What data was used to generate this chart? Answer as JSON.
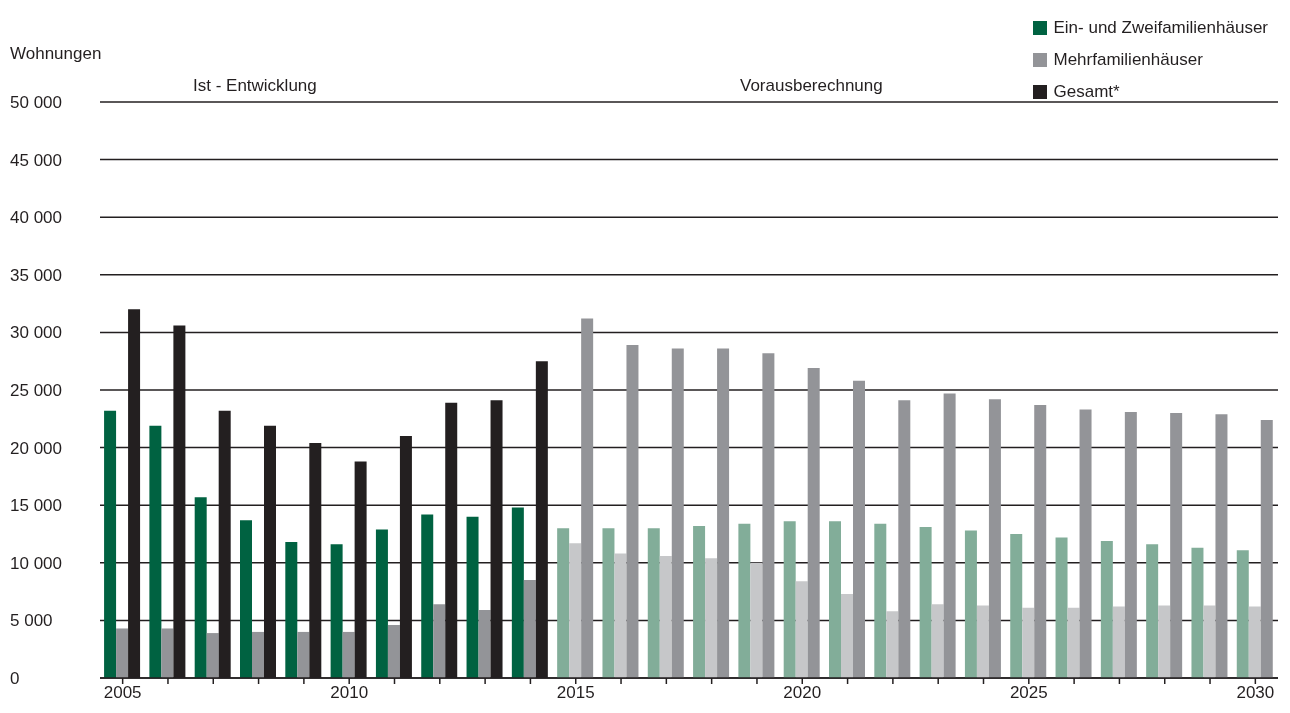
{
  "chart_data": {
    "type": "bar",
    "ylabel": "Wohnungen",
    "annotations": [
      "Ist - Entwicklung",
      "Vorausberechnung"
    ],
    "categories": [
      "2005",
      null,
      null,
      null,
      null,
      "2010",
      null,
      null,
      null,
      null,
      "2015",
      null,
      null,
      null,
      null,
      "2020",
      null,
      null,
      null,
      null,
      "2025",
      null,
      null,
      null,
      null,
      "2030"
    ],
    "series": [
      {
        "name": "Ein- und Zweifamilienhäuser",
        "color": "#006241",
        "colors": [
          "#006241",
          "#006241",
          "#006241",
          "#006241",
          "#006241",
          "#006241",
          "#006241",
          "#006241",
          "#006241",
          "#006241",
          "#82ad99",
          "#82ad99",
          "#82ad99",
          "#82ad99",
          "#82ad99",
          "#82ad99",
          "#82ad99",
          "#82ad99",
          "#82ad99",
          "#82ad99",
          "#82ad99",
          "#82ad99",
          "#82ad99",
          "#82ad99",
          "#82ad99",
          "#82ad99"
        ],
        "values": [
          23200,
          21900,
          15700,
          13700,
          11800,
          11600,
          12900,
          14200,
          14000,
          14800,
          13000,
          13000,
          13000,
          13200,
          13400,
          13600,
          13600,
          13400,
          13100,
          12800,
          12500,
          12200,
          11900,
          11600,
          11300,
          11100
        ]
      },
      {
        "name": "Mehrfamilienhäuser",
        "color": "#939498",
        "colors": [
          "#939498",
          "#939498",
          "#939498",
          "#939498",
          "#939498",
          "#939498",
          "#939498",
          "#939498",
          "#939498",
          "#939498",
          "#c6c7c9",
          "#c6c7c9",
          "#c6c7c9",
          "#c6c7c9",
          "#c6c7c9",
          "#c6c7c9",
          "#c6c7c9",
          "#c6c7c9",
          "#c6c7c9",
          "#c6c7c9",
          "#c6c7c9",
          "#c6c7c9",
          "#c6c7c9",
          "#c6c7c9",
          "#c6c7c9",
          "#c6c7c9"
        ],
        "values": [
          4300,
          4300,
          3900,
          4000,
          4000,
          4000,
          4600,
          6400,
          5900,
          8500,
          11700,
          10800,
          10600,
          10400,
          10000,
          8400,
          7300,
          5800,
          6400,
          6300,
          6100,
          6100,
          6200,
          6300,
          6300,
          6200
        ]
      },
      {
        "name": "Gesamt*",
        "color": "#231f20",
        "colors": [
          "#231f20",
          "#231f20",
          "#231f20",
          "#231f20",
          "#231f20",
          "#231f20",
          "#231f20",
          "#231f20",
          "#231f20",
          "#231f20",
          "#939498",
          "#939498",
          "#939498",
          "#939498",
          "#939498",
          "#939498",
          "#939498",
          "#939498",
          "#939498",
          "#939498",
          "#939498",
          "#939498",
          "#939498",
          "#939498",
          "#939498",
          "#939498"
        ],
        "values": [
          32000,
          30600,
          23200,
          21900,
          20400,
          18800,
          21000,
          23900,
          24100,
          27500,
          31200,
          28900,
          28600,
          28600,
          28200,
          26900,
          25800,
          24100,
          24700,
          24200,
          23700,
          23300,
          23100,
          23000,
          22900,
          22400
        ]
      }
    ],
    "ylim": [
      0,
      50000
    ],
    "yticks": [
      0,
      {
        "value": 5000,
        "label": "5 000"
      },
      {
        "value": 10000,
        "label": "10 000"
      },
      {
        "value": 15000,
        "label": "15 000"
      },
      {
        "value": 20000,
        "label": "20 000"
      },
      {
        "value": 25000,
        "label": "25 000"
      },
      {
        "value": 30000,
        "label": "30 000"
      },
      {
        "value": 35000,
        "label": "35 000"
      },
      {
        "value": 40000,
        "label": "40 000"
      },
      {
        "value": 45000,
        "label": "45 000"
      },
      {
        "value": 50000,
        "label": "50 000"
      }
    ],
    "grid": "y",
    "legend": "top right"
  }
}
